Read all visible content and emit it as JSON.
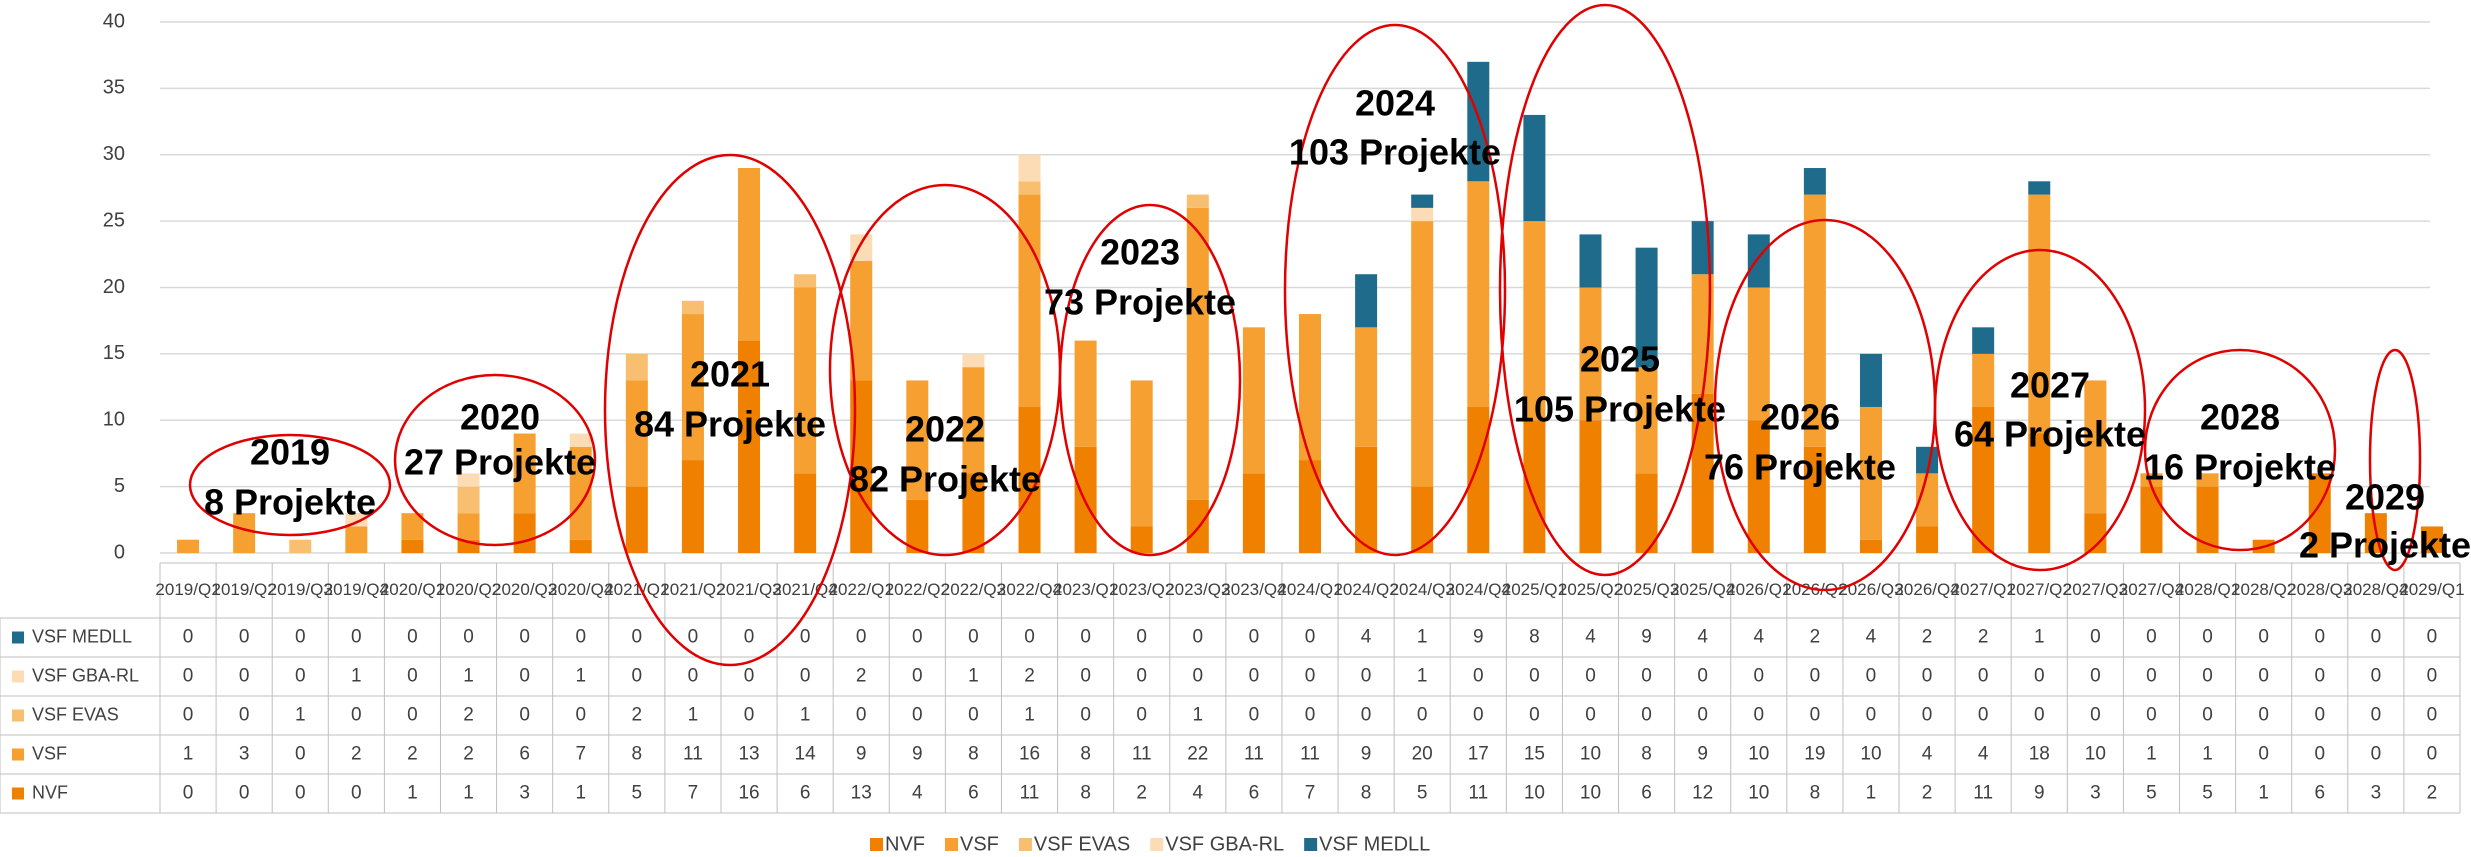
{
  "chart_data": {
    "type": "bar",
    "stacked": true,
    "categories": [
      "2019/Q1",
      "2019/Q2",
      "2019/Q3",
      "2019/Q4",
      "2020/Q1",
      "2020/Q2",
      "2020/Q3",
      "2020/Q4",
      "2021/Q1",
      "2021/Q2",
      "2021/Q3",
      "2021/Q4",
      "2022/Q1",
      "2022/Q2",
      "2022/Q3",
      "2022/Q4",
      "2023/Q1",
      "2023/Q2",
      "2023/Q3",
      "2023/Q4",
      "2024/Q1",
      "2024/Q2",
      "2024/Q3",
      "2024/Q4",
      "2025/Q1",
      "2025/Q2",
      "2025/Q3",
      "2025/Q4",
      "2026/Q1",
      "2026/Q2",
      "2026/Q3",
      "2026/Q4",
      "2027/Q1",
      "2027/Q2",
      "2027/Q3",
      "2027/Q4",
      "2028/Q1",
      "2028/Q2",
      "2028/Q3",
      "2028/Q4",
      "2029/Q1"
    ],
    "series": [
      {
        "name": "NVF",
        "color": "#f08000",
        "values": [
          0,
          0,
          0,
          0,
          1,
          1,
          3,
          1,
          5,
          7,
          16,
          6,
          13,
          4,
          6,
          11,
          8,
          2,
          4,
          6,
          7,
          8,
          5,
          11,
          10,
          10,
          6,
          12,
          10,
          8,
          1,
          2,
          11,
          9,
          3,
          5,
          5,
          1,
          6,
          3,
          2
        ]
      },
      {
        "name": "VSF",
        "color": "#f5a030",
        "values": [
          1,
          3,
          0,
          2,
          2,
          2,
          6,
          7,
          8,
          11,
          13,
          14,
          9,
          9,
          8,
          16,
          8,
          11,
          22,
          11,
          11,
          9,
          20,
          17,
          15,
          10,
          8,
          9,
          10,
          19,
          10,
          4,
          4,
          18,
          10,
          1,
          1,
          0,
          0,
          0,
          0
        ]
      },
      {
        "name": "VSF EVAS",
        "color": "#f8bf70",
        "values": [
          0,
          0,
          1,
          0,
          0,
          2,
          0,
          0,
          2,
          1,
          0,
          1,
          0,
          0,
          0,
          1,
          0,
          0,
          1,
          0,
          0,
          0,
          0,
          0,
          0,
          0,
          0,
          0,
          0,
          0,
          0,
          0,
          0,
          0,
          0,
          0,
          0,
          0,
          0,
          0,
          0
        ]
      },
      {
        "name": "VSF GBA-RL",
        "color": "#fcdcb4",
        "values": [
          0,
          0,
          0,
          1,
          0,
          1,
          0,
          1,
          0,
          0,
          0,
          0,
          2,
          0,
          1,
          2,
          0,
          0,
          0,
          0,
          0,
          0,
          1,
          0,
          0,
          0,
          0,
          0,
          0,
          0,
          0,
          0,
          0,
          0,
          0,
          0,
          0,
          0,
          0,
          0,
          0
        ]
      },
      {
        "name": "VSF MEDLL",
        "color": "#1f6b8c",
        "values": [
          0,
          0,
          0,
          0,
          0,
          0,
          0,
          0,
          0,
          0,
          0,
          0,
          0,
          0,
          0,
          0,
          0,
          0,
          0,
          0,
          0,
          4,
          1,
          9,
          8,
          4,
          9,
          4,
          4,
          2,
          4,
          2,
          2,
          1,
          0,
          0,
          0,
          0,
          0,
          0,
          0
        ]
      }
    ],
    "ylim": [
      0,
      40
    ],
    "yticks": [
      0,
      5,
      10,
      15,
      20,
      25,
      30,
      35,
      40
    ],
    "grid": true,
    "legend": "bottom",
    "annotations": [
      {
        "title": "2019",
        "text": "8 Projekte"
      },
      {
        "title": "2020",
        "text": "27 Projekte"
      },
      {
        "title": "2021",
        "text": "84 Projekte"
      },
      {
        "title": "2022",
        "text": "82 Projekte"
      },
      {
        "title": "2023",
        "text": "73 Projekte"
      },
      {
        "title": "2024",
        "text": "103 Projekte"
      },
      {
        "title": "2025",
        "text": "105 Projekte"
      },
      {
        "title": "2026",
        "text": "76 Projekte"
      },
      {
        "title": "2027",
        "text": "64 Projekte"
      },
      {
        "title": "2028",
        "text": "16 Projekte"
      },
      {
        "title": "2029",
        "text": "2 Projekte"
      }
    ]
  }
}
